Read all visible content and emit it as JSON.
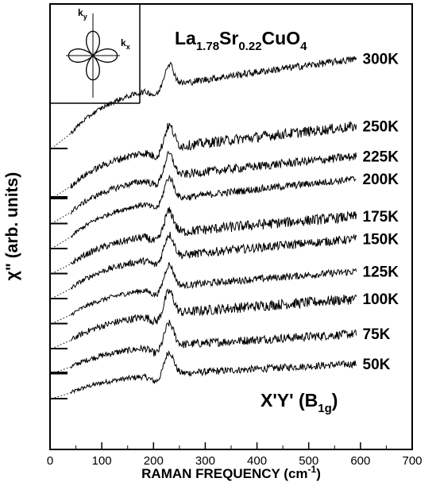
{
  "chart_data": {
    "type": "line",
    "title_main": "La",
    "title_sub1": "1.78",
    "title_mid": "Sr",
    "title_sub2": "0.22",
    "title_tail": "CuO",
    "title_sub3": "4",
    "annotation_main": "X'Y' (B",
    "annotation_sub": "1g",
    "annotation_close": ")",
    "inset_labels": {
      "ky_base": "k",
      "ky_sub": "y",
      "kx_base": "k",
      "kx_sub": "x"
    },
    "xlabel": "RAMAN FREQUENCY (cm",
    "xlabel_sup": "-1",
    "xlabel_close": ")",
    "ylabel": "χ\" (arb. units)",
    "xlim": [
      0,
      700
    ],
    "xticks": [
      0,
      100,
      200,
      300,
      400,
      500,
      600,
      700
    ],
    "y_units": "arb. units (stacked traces, no numeric scale)",
    "series": [
      {
        "name": "50K",
        "baseline_offset": 0,
        "start_x": 40,
        "peak_x": 230,
        "final_offset": 1.4
      },
      {
        "name": "75K",
        "baseline_offset": 1,
        "start_x": 40,
        "peak_x": 230,
        "final_offset": 2.6
      },
      {
        "name": "100K",
        "baseline_offset": 2,
        "start_x": 40,
        "peak_x": 230,
        "final_offset": 4.0
      },
      {
        "name": "125K",
        "baseline_offset": 3,
        "start_x": 40,
        "peak_x": 230,
        "final_offset": 5.1
      },
      {
        "name": "150K",
        "baseline_offset": 4,
        "start_x": 40,
        "peak_x": 230,
        "final_offset": 6.4
      },
      {
        "name": "175K",
        "baseline_offset": 5,
        "start_x": 40,
        "peak_x": 230,
        "final_offset": 7.3
      },
      {
        "name": "200K",
        "baseline_offset": 6,
        "start_x": 40,
        "peak_x": 230,
        "final_offset": 8.8
      },
      {
        "name": "225K",
        "baseline_offset": 7,
        "start_x": 40,
        "peak_x": 230,
        "final_offset": 9.7
      },
      {
        "name": "250K",
        "baseline_offset": 8,
        "start_x": 40,
        "peak_x": 230,
        "final_offset": 10.9
      },
      {
        "name": "300K",
        "baseline_offset": 10,
        "start_x": 40,
        "peak_x": 230,
        "final_offset": 13.6
      }
    ],
    "legend": "labels at right end of each trace",
    "grid": false
  }
}
